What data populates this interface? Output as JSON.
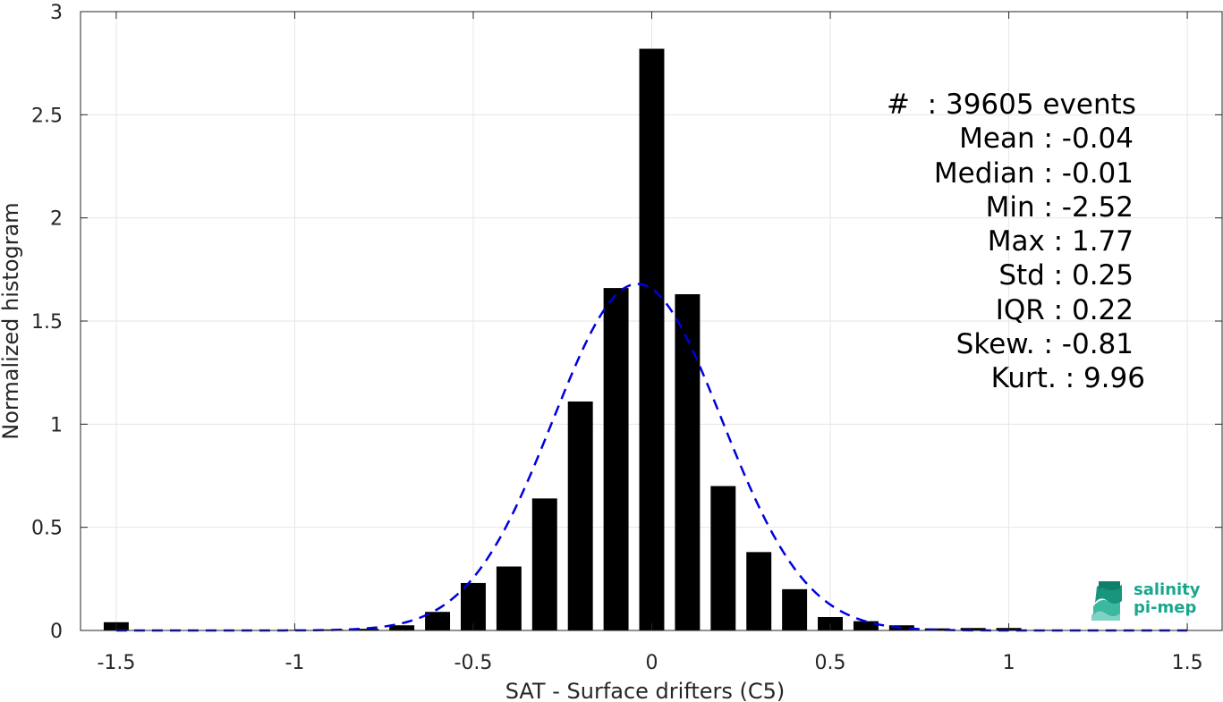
{
  "chart_data": {
    "type": "bar",
    "xlabel": "SAT - Surface drifters (C5)",
    "ylabel": "Normalized histogram",
    "xlim": [
      -1.6,
      1.6
    ],
    "ylim": [
      0,
      3
    ],
    "xticks": [
      -1.5,
      -1,
      -0.5,
      0,
      0.5,
      1,
      1.5
    ],
    "xtick_labels": [
      "-1.5",
      "-1",
      "-0.5",
      "0",
      "0.5",
      "1",
      "1.5"
    ],
    "yticks": [
      0,
      0.5,
      1,
      1.5,
      2,
      2.5,
      3
    ],
    "ytick_labels": [
      "0",
      "0.5",
      "1",
      "1.5",
      "2",
      "2.5",
      "3"
    ],
    "grid": true,
    "bar_color": "#000000",
    "bar_width": 0.07,
    "bars": [
      {
        "x": -1.5,
        "y": 0.04
      },
      {
        "x": -1.2,
        "y": 0.002
      },
      {
        "x": -1.1,
        "y": 0.002
      },
      {
        "x": -1.0,
        "y": 0.003
      },
      {
        "x": -0.9,
        "y": 0.005
      },
      {
        "x": -0.8,
        "y": 0.008
      },
      {
        "x": -0.7,
        "y": 0.025
      },
      {
        "x": -0.6,
        "y": 0.09
      },
      {
        "x": -0.5,
        "y": 0.23
      },
      {
        "x": -0.4,
        "y": 0.31
      },
      {
        "x": -0.3,
        "y": 0.64
      },
      {
        "x": -0.2,
        "y": 1.11
      },
      {
        "x": -0.1,
        "y": 1.66
      },
      {
        "x": 0.0,
        "y": 2.82
      },
      {
        "x": 0.1,
        "y": 1.63
      },
      {
        "x": 0.2,
        "y": 0.7
      },
      {
        "x": 0.3,
        "y": 0.38
      },
      {
        "x": 0.4,
        "y": 0.2
      },
      {
        "x": 0.5,
        "y": 0.065
      },
      {
        "x": 0.6,
        "y": 0.045
      },
      {
        "x": 0.7,
        "y": 0.025
      },
      {
        "x": 0.8,
        "y": 0.01
      },
      {
        "x": 0.9,
        "y": 0.012
      },
      {
        "x": 1.0,
        "y": 0.012
      },
      {
        "x": 1.1,
        "y": 0.003
      }
    ],
    "fit": {
      "style": "dashed",
      "color": "#0000dd",
      "mean": -0.04,
      "std": 0.237,
      "peak": 1.68,
      "x_range": [
        -1.5,
        1.5
      ]
    },
    "stats": [
      {
        "text": "#  : 39605 events",
        "align": "left"
      },
      {
        "text": "Mean : -0.04",
        "align": "right"
      },
      {
        "text": "Median : -0.01",
        "align": "right"
      },
      {
        "text": "Min : -2.52",
        "align": "right"
      },
      {
        "text": "Max : 1.77",
        "align": "right"
      },
      {
        "text": "Std : 0.25",
        "align": "right"
      },
      {
        "text": "IQR : 0.22",
        "align": "right"
      },
      {
        "text": "Skew. : -0.81",
        "align": "right"
      },
      {
        "text": "Kurt. : 9.96",
        "align": "left"
      }
    ]
  },
  "logo": {
    "line1": "salinity",
    "line2": "pi-mep",
    "color": "#1aa68c"
  }
}
